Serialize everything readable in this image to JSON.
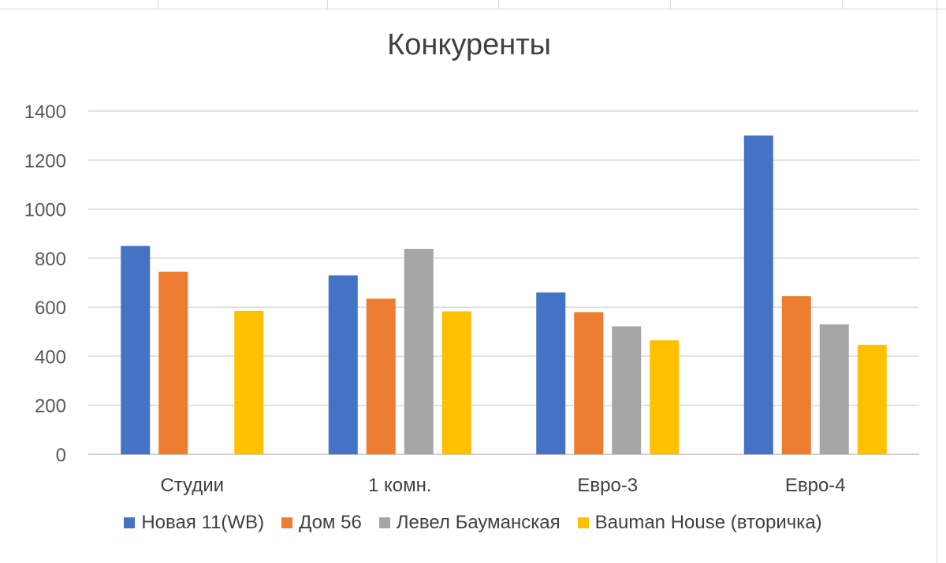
{
  "chart_data": {
    "type": "bar",
    "title": "Конкуренты",
    "categories": [
      "Студии",
      "1 комн.",
      "Евро-3",
      "Евро-4"
    ],
    "series": [
      {
        "name": "Новая 11(WB)",
        "color": "#4472c4",
        "values": [
          850,
          730,
          660,
          1300
        ]
      },
      {
        "name": "Дом 56",
        "color": "#ed7d31",
        "values": [
          745,
          635,
          580,
          645
        ]
      },
      {
        "name": "Левел Бауманская",
        "color": "#a5a5a5",
        "values": [
          0,
          838,
          522,
          530
        ]
      },
      {
        "name": "Bauman House (вторичка)",
        "color": "#ffc000",
        "values": [
          585,
          583,
          465,
          447
        ]
      }
    ],
    "ylim": [
      0,
      1400
    ],
    "yticks": [
      0,
      200,
      400,
      600,
      800,
      1000,
      1200,
      1400
    ],
    "grid": true,
    "legend_position": "bottom"
  }
}
